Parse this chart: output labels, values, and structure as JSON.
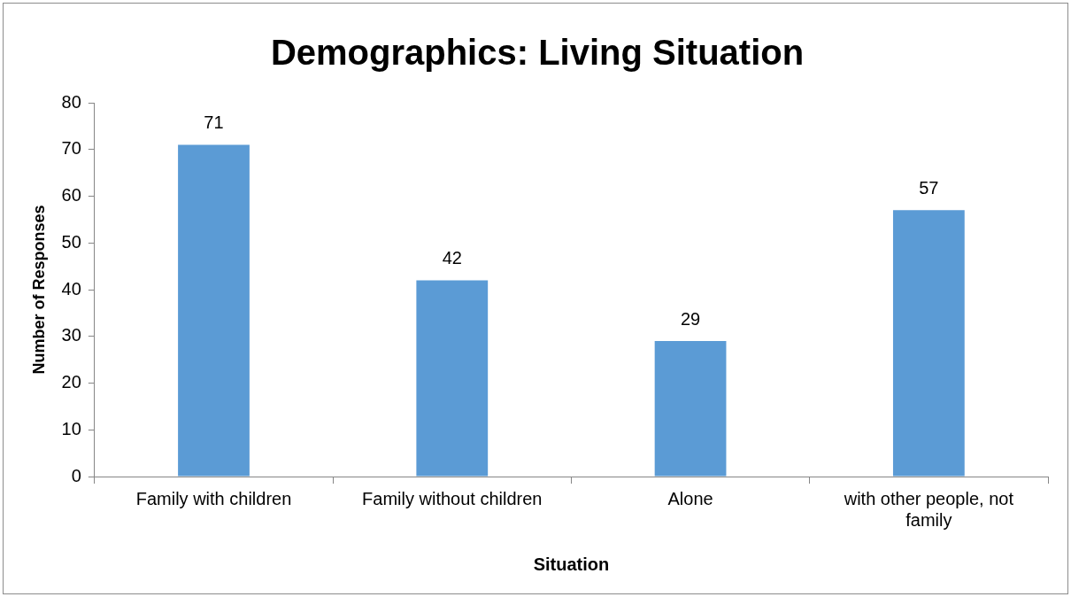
{
  "chart_data": {
    "type": "bar",
    "title": "Demographics: Living Situation",
    "xlabel": "Situation",
    "ylabel": "Number of Responses",
    "categories": [
      "Family with children",
      "Family without children",
      "Alone",
      "with other people, not family"
    ],
    "values": [
      71,
      42,
      29,
      57
    ],
    "color": "#5b9bd5",
    "ylim": [
      0,
      80
    ],
    "yticks": [
      0,
      10,
      20,
      30,
      40,
      50,
      60,
      70,
      80
    ],
    "grid": false,
    "legend": false,
    "data_labels": true
  }
}
